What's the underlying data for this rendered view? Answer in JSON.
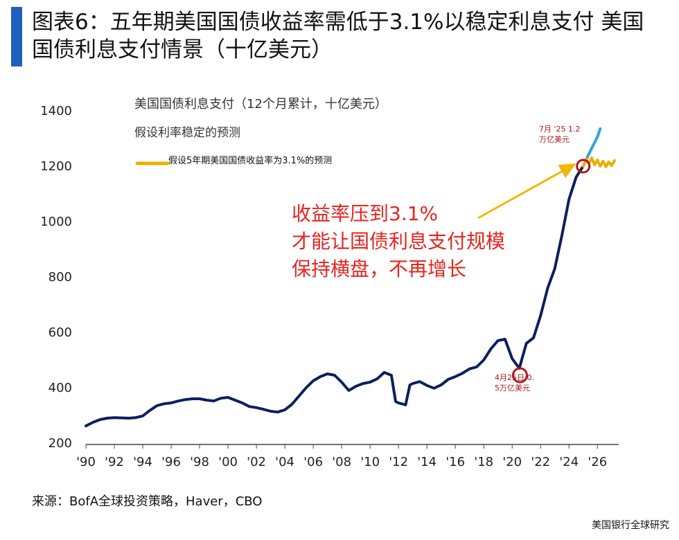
{
  "header": {
    "title": "图表6：五年期美国国债收益率需低于3.1%以稳定利息支付 美国国债利息支付情景（十亿美元）"
  },
  "source": "来源：BofA全球投资策略，Haver，CBO",
  "brand": "美国银行全球研究",
  "colors": {
    "main_series": "#0c1f5c",
    "stable_rate_series": "#2fa3d8",
    "yield_3_1_series": "#e8b000",
    "annotation_red": "#e8231e",
    "marker_red": "#b3141c",
    "arrow": "#f2b705"
  },
  "chart_data": {
    "type": "line",
    "title": "美国国债利息支付（12个月累计，十亿美元）",
    "xlabel": "",
    "ylabel": "",
    "ylim": [
      200,
      1400
    ],
    "y_ticks": [
      200,
      400,
      600,
      800,
      1000,
      1200,
      1400
    ],
    "xlim": [
      1990,
      2027.5
    ],
    "x_ticks": [
      1990,
      1992,
      1994,
      1996,
      1998,
      2000,
      2002,
      2004,
      2006,
      2008,
      2010,
      2012,
      2014,
      2016,
      2018,
      2020,
      2022,
      2024,
      2026
    ],
    "x_tick_labels": [
      "'90",
      "'92",
      "'94",
      "'96",
      "'98",
      "'00",
      "'02",
      "'04",
      "'06",
      "'08",
      "'10",
      "'12",
      "'14",
      "'16",
      "'18",
      "'20",
      "'22",
      "'24",
      "'26"
    ],
    "grid": false,
    "series": [
      {
        "name": "",
        "x": [
          1990.0,
          1990.5,
          1991.0,
          1991.5,
          1992.0,
          1992.5,
          1993.0,
          1993.5,
          1994.0,
          1994.5,
          1995.0,
          1995.5,
          1996.0,
          1996.5,
          1997.0,
          1997.5,
          1998.0,
          1998.5,
          1999.0,
          1999.5,
          2000.0,
          2000.5,
          2001.0,
          2001.5,
          2002.0,
          2002.5,
          2003.0,
          2003.5,
          2004.0,
          2004.5,
          2005.0,
          2005.5,
          2006.0,
          2006.5,
          2007.0,
          2007.5,
          2008.0,
          2008.5,
          2009.0,
          2009.5,
          2010.0,
          2010.5,
          2011.0,
          2011.5,
          2011.8,
          2012.0,
          2012.5,
          2012.8,
          2013.0,
          2013.5,
          2014.0,
          2014.5,
          2015.0,
          2015.5,
          2016.0,
          2016.5,
          2017.0,
          2017.5,
          2018.0,
          2018.5,
          2019.0,
          2019.5,
          2020.0,
          2020.5,
          2021.0,
          2021.5,
          2022.0,
          2022.5,
          2023.0,
          2023.5,
          2024.0,
          2024.5,
          2025.0
        ],
        "values": [
          262,
          275,
          285,
          290,
          292,
          291,
          290,
          292,
          298,
          318,
          335,
          342,
          345,
          352,
          357,
          360,
          360,
          355,
          352,
          362,
          365,
          355,
          345,
          332,
          328,
          322,
          315,
          312,
          320,
          340,
          370,
          400,
          425,
          440,
          450,
          445,
          420,
          390,
          405,
          415,
          420,
          432,
          455,
          445,
          350,
          345,
          338,
          410,
          415,
          422,
          408,
          398,
          410,
          430,
          440,
          452,
          468,
          475,
          500,
          540,
          570,
          575,
          505,
          470,
          560,
          580,
          660,
          760,
          830,
          950,
          1080,
          1160,
          1200
        ]
      },
      {
        "name": "假设利率稳定的预测",
        "x": [
          2025.0,
          2025.5,
          2026.0,
          2026.2
        ],
        "values": [
          1200,
          1255,
          1305,
          1335
        ]
      },
      {
        "name": "假设5年期美国国债收益率为3.1%的预测",
        "x": [
          2025.0,
          2025.2,
          2025.4,
          2025.6,
          2025.8,
          2026.0,
          2026.2,
          2026.4,
          2026.6,
          2026.8,
          2027.0,
          2027.2
        ],
        "values": [
          1200,
          1225,
          1210,
          1230,
          1205,
          1222,
          1200,
          1218,
          1198,
          1215,
          1202,
          1220
        ]
      }
    ],
    "annotations": [
      {
        "text": "7月 '25 1.2 万亿美元",
        "x": 2025.0,
        "y": 1200
      },
      {
        "text": "4月25日 0.5万亿美元",
        "x": 2020.5,
        "y": 470
      },
      {
        "text": "收益率压到3.1% 才能让国债利息支付规模 保持横盘，不再增长"
      }
    ]
  },
  "chart_text": {
    "subtitle_lines": [
      "美国国债利息支付（12个月累计，十亿美元）",
      "假设利率稳定的预测"
    ],
    "legend_yield": "假设5年期美国国债收益率为3.1%的预测",
    "note_top_lines": [
      "7月 '25 1.2",
      "万亿美元"
    ],
    "note_bottom_lines": [
      "4月25日 0.",
      "5万亿美元"
    ],
    "red_text_lines": [
      "收益率压到3.1%",
      "才能让国债利息支付规模",
      "保持横盘，不再增长"
    ]
  }
}
